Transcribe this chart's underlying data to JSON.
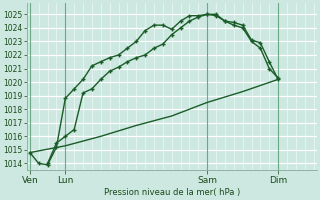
{
  "title": "Pression niveau de la mer( hPa )",
  "bg_color": "#cce8e0",
  "grid_color": "#aaccbb",
  "line_color": "#1a5c28",
  "ylim": [
    1013.5,
    1025.8
  ],
  "yticks": [
    1014,
    1015,
    1016,
    1017,
    1018,
    1019,
    1020,
    1021,
    1022,
    1023,
    1024,
    1025
  ],
  "xtick_labels": [
    "Ven",
    "Lun",
    "Sam",
    "Dim"
  ],
  "xtick_positions": [
    0,
    12,
    60,
    84
  ],
  "total_hours": 96,
  "vline_positions": [
    0,
    12,
    60,
    84
  ],
  "line1_x": [
    0,
    3,
    6,
    9,
    12,
    15,
    18,
    21,
    24,
    27,
    30,
    33,
    36,
    39,
    42,
    45,
    48,
    51,
    54,
    57,
    60,
    63,
    66,
    69,
    72,
    75,
    78,
    81,
    84
  ],
  "line1_y": [
    1014.8,
    1014.0,
    1013.9,
    1015.2,
    1018.8,
    1019.5,
    1020.2,
    1021.2,
    1021.5,
    1021.8,
    1022.0,
    1022.5,
    1023.0,
    1023.8,
    1024.2,
    1024.2,
    1023.9,
    1024.5,
    1024.9,
    1024.9,
    1025.0,
    1024.9,
    1024.5,
    1024.4,
    1024.2,
    1023.1,
    1022.9,
    1021.5,
    1020.2
  ],
  "line2_x": [
    6,
    9,
    12,
    15,
    18,
    21,
    24,
    27,
    30,
    33,
    36,
    39,
    42,
    45,
    48,
    51,
    54,
    57,
    60,
    63,
    66,
    69,
    72,
    75,
    78,
    81,
    84
  ],
  "line2_y": [
    1014.0,
    1015.5,
    1016.0,
    1016.5,
    1019.2,
    1019.5,
    1020.2,
    1020.8,
    1021.1,
    1021.5,
    1021.8,
    1022.0,
    1022.5,
    1022.8,
    1023.5,
    1024.0,
    1024.5,
    1024.8,
    1025.0,
    1025.0,
    1024.5,
    1024.2,
    1024.0,
    1023.0,
    1022.5,
    1021.0,
    1020.3
  ],
  "line3_x": [
    0,
    12,
    24,
    36,
    48,
    60,
    72,
    84
  ],
  "line3_y": [
    1014.8,
    1015.3,
    1016.0,
    1016.8,
    1017.5,
    1018.5,
    1019.3,
    1020.2
  ],
  "ylabel_fontsize": 6.0,
  "ytick_fontsize": 5.5,
  "xtick_fontsize": 6.5
}
